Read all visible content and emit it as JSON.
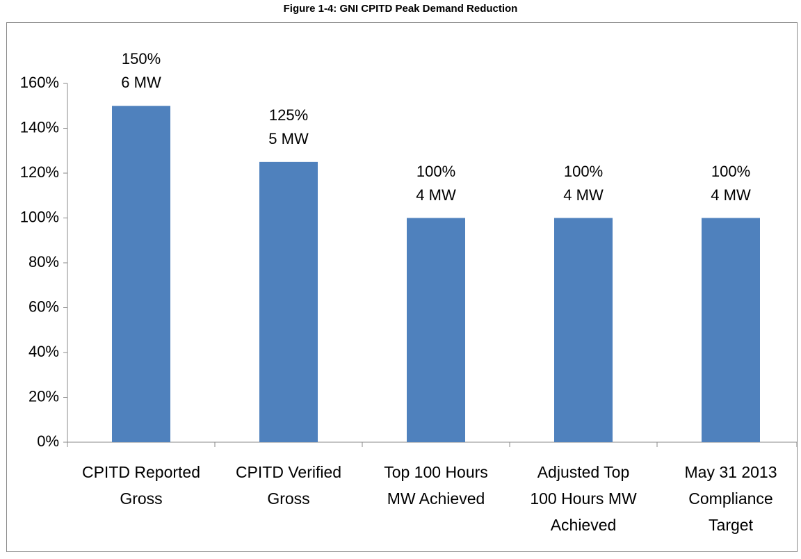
{
  "chart_data": {
    "type": "bar",
    "title": "Figure 1-4: GNI CPITD Peak Demand Reduction",
    "categories": [
      "CPITD Reported\nGross",
      "CPITD Verified\nGross",
      "Top 100 Hours\nMW Achieved",
      "Adjusted Top\n100 Hours MW\nAchieved",
      "May 31 2013\nCompliance\nTarget"
    ],
    "values": [
      150,
      125,
      100,
      100,
      100
    ],
    "value_labels": [
      "150%",
      "125%",
      "100%",
      "100%",
      "100%"
    ],
    "mw_labels": [
      "6 MW",
      "5 MW",
      "4 MW",
      "4 MW",
      "4 MW"
    ],
    "color": "#4f81bd",
    "ylim": [
      0,
      160
    ],
    "yticks": [
      {
        "value": 0,
        "label": "0%"
      },
      {
        "value": 20,
        "label": "20%"
      },
      {
        "value": 40,
        "label": "40%"
      },
      {
        "value": 60,
        "label": "60%"
      },
      {
        "value": 80,
        "label": "80%"
      },
      {
        "value": 100,
        "label": "100%"
      },
      {
        "value": 120,
        "label": "120%"
      },
      {
        "value": 140,
        "label": "140%"
      },
      {
        "value": 160,
        "label": "160%"
      }
    ],
    "grid": false
  }
}
